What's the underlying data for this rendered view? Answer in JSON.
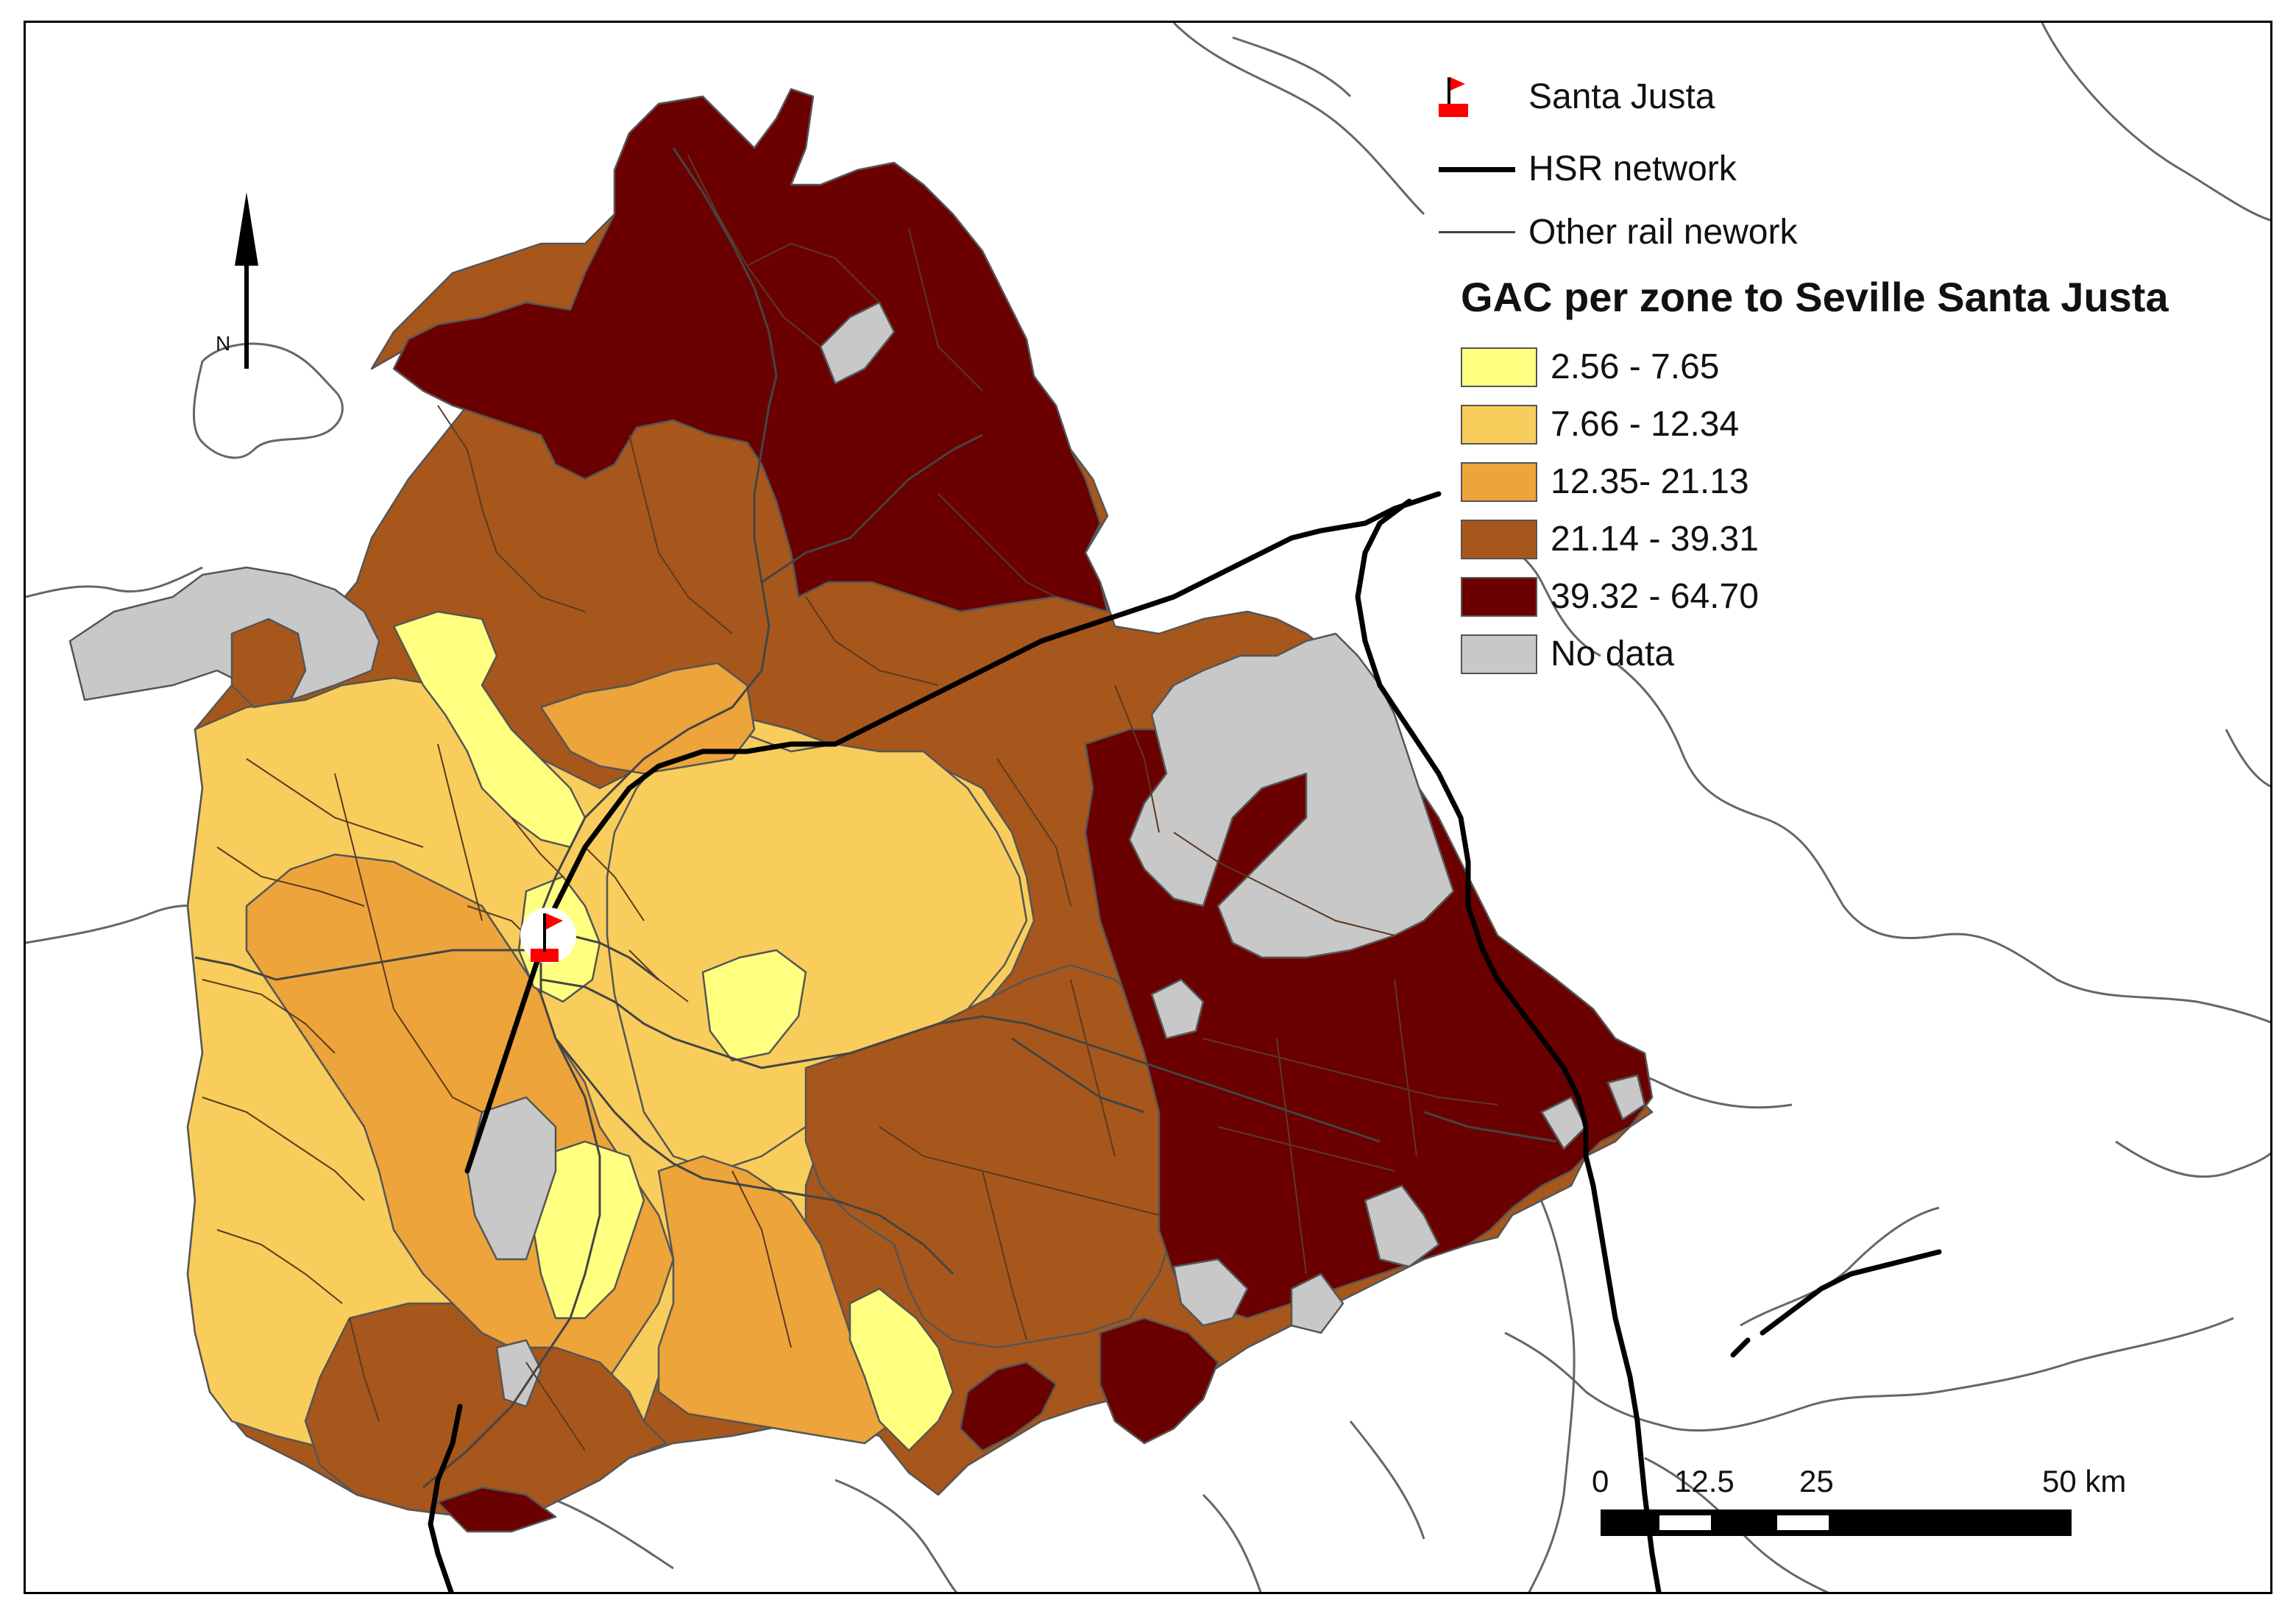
{
  "map": {
    "legend": {
      "point_label": "Santa Justa",
      "hsr_label": "HSR network",
      "rail_label": "Other rail nework",
      "title": "GAC per zone to Seville Santa Justa",
      "classes": [
        {
          "label": "2.56 - 7.65",
          "color": "#ffff80"
        },
        {
          "label": "7.66 - 12.34",
          "color": "#f8cd5c"
        },
        {
          "label": "12.35- 21.13",
          "color": "#eda43a"
        },
        {
          "label": "21.14 - 39.31",
          "color": "#a7571b"
        },
        {
          "label": "39.32 - 64.70",
          "color": "#6b0000"
        },
        {
          "label": "No data",
          "color": "#c8c8c8"
        }
      ]
    },
    "north_arrow": {
      "label": "N"
    },
    "scale_bar": {
      "ticks": [
        "0",
        "12.5",
        "25",
        "50 km"
      ]
    },
    "colors": {
      "hsr": "#000000",
      "rail": "#444444",
      "boundary": "#555555",
      "marker": "#ff0000"
    },
    "icons": [
      "flag-icon",
      "north-arrow-icon"
    ]
  }
}
